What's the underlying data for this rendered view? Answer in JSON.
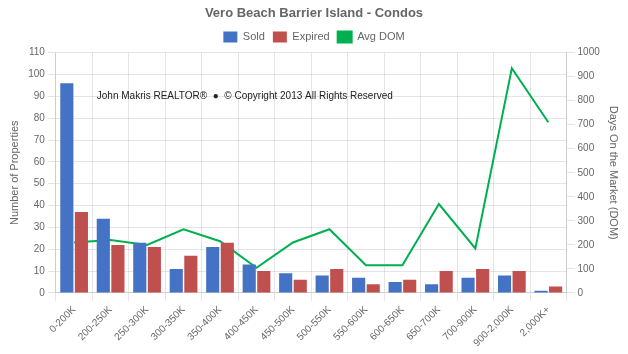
{
  "chart_data": {
    "type": "bar",
    "title": "Vero Beach Barrier Island - Condos",
    "categories": [
      "0-200K",
      "200-250K",
      "250-300K",
      "300-350K",
      "350-400K",
      "400-450K",
      "450-500K",
      "500-550K",
      "550-600K",
      "600-650K",
      "650-700K",
      "700-900K",
      "900-2,000K",
      "2,000K+"
    ],
    "series": [
      {
        "name": "Sold",
        "color": "#4472C4",
        "values": [
          96,
          34,
          23,
          11,
          21,
          13,
          9,
          8,
          7,
          5,
          4,
          7,
          8,
          1
        ]
      },
      {
        "name": "Expired",
        "color": "#C0504D",
        "values": [
          37,
          22,
          21,
          17,
          23,
          10,
          6,
          11,
          4,
          6,
          10,
          11,
          10,
          3
        ]
      },
      {
        "name": "Avg DOM",
        "color": "#00B050",
        "type": "line",
        "axis": "y2",
        "values": [
          210,
          220,
          200,
          265,
          215,
          105,
          210,
          265,
          115,
          115,
          370,
          185,
          935,
          710
        ]
      }
    ],
    "ylabel": "Number of Properties",
    "y2label": "Days On the Market (DOM)",
    "ylim": [
      0,
      110
    ],
    "yticks": [
      0,
      10,
      20,
      30,
      40,
      50,
      60,
      70,
      80,
      90,
      100,
      110
    ],
    "y2lim": [
      0,
      1000
    ],
    "y2ticks": [
      0,
      100,
      200,
      300,
      400,
      500,
      600,
      700,
      800,
      900,
      1000
    ],
    "grid": true,
    "legend": "top",
    "annotations": [
      {
        "text": "John Makris REALTOR®  ●  © Copyright 2013 All Rights Reserved"
      }
    ]
  }
}
